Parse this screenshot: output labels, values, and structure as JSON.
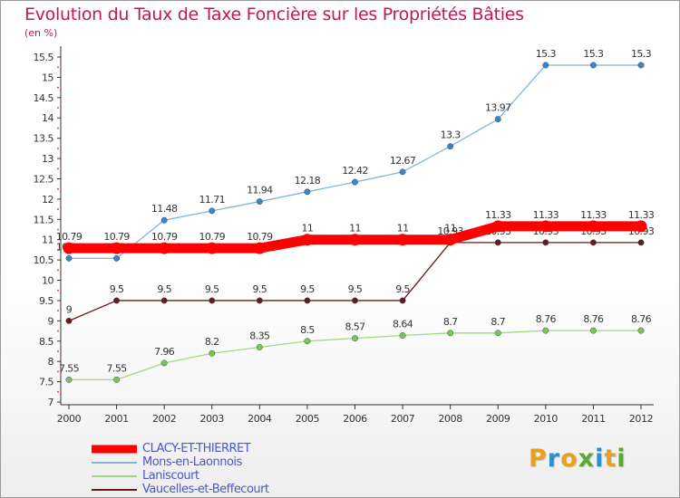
{
  "title": "Evolution du Taux de Taxe Foncière sur les Propriétés Bâties",
  "unit": "(en %)",
  "logo": {
    "letters": [
      "P",
      "r",
      "o",
      "x",
      "i",
      "t",
      "i"
    ],
    "colors": [
      "#e8a020",
      "#2e8fd0",
      "#e8a020",
      "#5aaa30",
      "#2e8fd0",
      "#e8a020",
      "#5aaa30"
    ]
  },
  "chart_data": {
    "type": "line",
    "x": [
      "2000",
      "2001",
      "2002",
      "2003",
      "2004",
      "2005",
      "2006",
      "2007",
      "2008",
      "2009",
      "2010",
      "2011",
      "2012"
    ],
    "ylim": [
      7,
      15.5
    ],
    "yticks": [
      "7",
      "7.5",
      "8",
      "8.5",
      "9",
      "9.5",
      "10",
      "10.5",
      "11",
      "11.5",
      "12",
      "12.5",
      "13",
      "13.5",
      "14",
      "14.5",
      "15",
      "15.5"
    ],
    "grid": false,
    "legend_position": "bottom-left",
    "series": [
      {
        "name": "Vaucelles-et-Beffecourt",
        "color": "#6b1a1a",
        "marker": "#6b1a1a",
        "width": 1.3,
        "values": [
          9,
          9.5,
          9.5,
          9.5,
          9.5,
          9.5,
          9.5,
          9.5,
          10.93,
          10.93,
          10.93,
          10.93,
          10.93
        ],
        "labels": [
          "9",
          "9.5",
          "9.5",
          "9.5",
          "9.5",
          "9.5",
          "9.5",
          "9.5",
          "10.93",
          "10.93",
          "10.93",
          "10.93",
          "10.93"
        ]
      },
      {
        "name": "Laniscourt",
        "color": "#a4d880",
        "marker": "#7cc84a",
        "width": 1.3,
        "values": [
          7.55,
          7.55,
          7.96,
          8.2,
          8.35,
          8.5,
          8.57,
          8.64,
          8.7,
          8.7,
          8.76,
          8.76,
          8.76
        ],
        "labels": [
          "7.55",
          "7.55",
          "7.96",
          "8.2",
          "8.35",
          "8.5",
          "8.57",
          "8.64",
          "8.7",
          "8.7",
          "8.76",
          "8.76",
          "8.76"
        ]
      },
      {
        "name": "Mons-en-Laonnois",
        "color": "#88b4dc",
        "marker": "#3a86c6",
        "width": 1.3,
        "values": [
          10.54,
          10.54,
          11.48,
          11.71,
          11.94,
          12.18,
          12.42,
          12.67,
          13.3,
          13.97,
          15.3,
          15.3,
          15.3
        ],
        "labels": [
          "10.54",
          "10.54",
          "11.48",
          "11.71",
          "11.94",
          "12.18",
          "12.42",
          "12.67",
          "13.3",
          "13.97",
          "15.3",
          "15.3",
          "15.3"
        ]
      },
      {
        "name": "CLACY-ET-THIERRET",
        "color": "#ff0000",
        "marker": "#ff0000",
        "width": 11,
        "values": [
          10.79,
          10.79,
          10.79,
          10.79,
          10.79,
          11,
          11,
          11,
          11,
          11.33,
          11.33,
          11.33,
          11.33
        ],
        "labels": [
          "10.79",
          "10.79",
          "10.79",
          "10.79",
          "10.79",
          "11",
          "11",
          "11",
          "11",
          "11.33",
          "11.33",
          "11.33",
          "11.33"
        ]
      }
    ]
  }
}
